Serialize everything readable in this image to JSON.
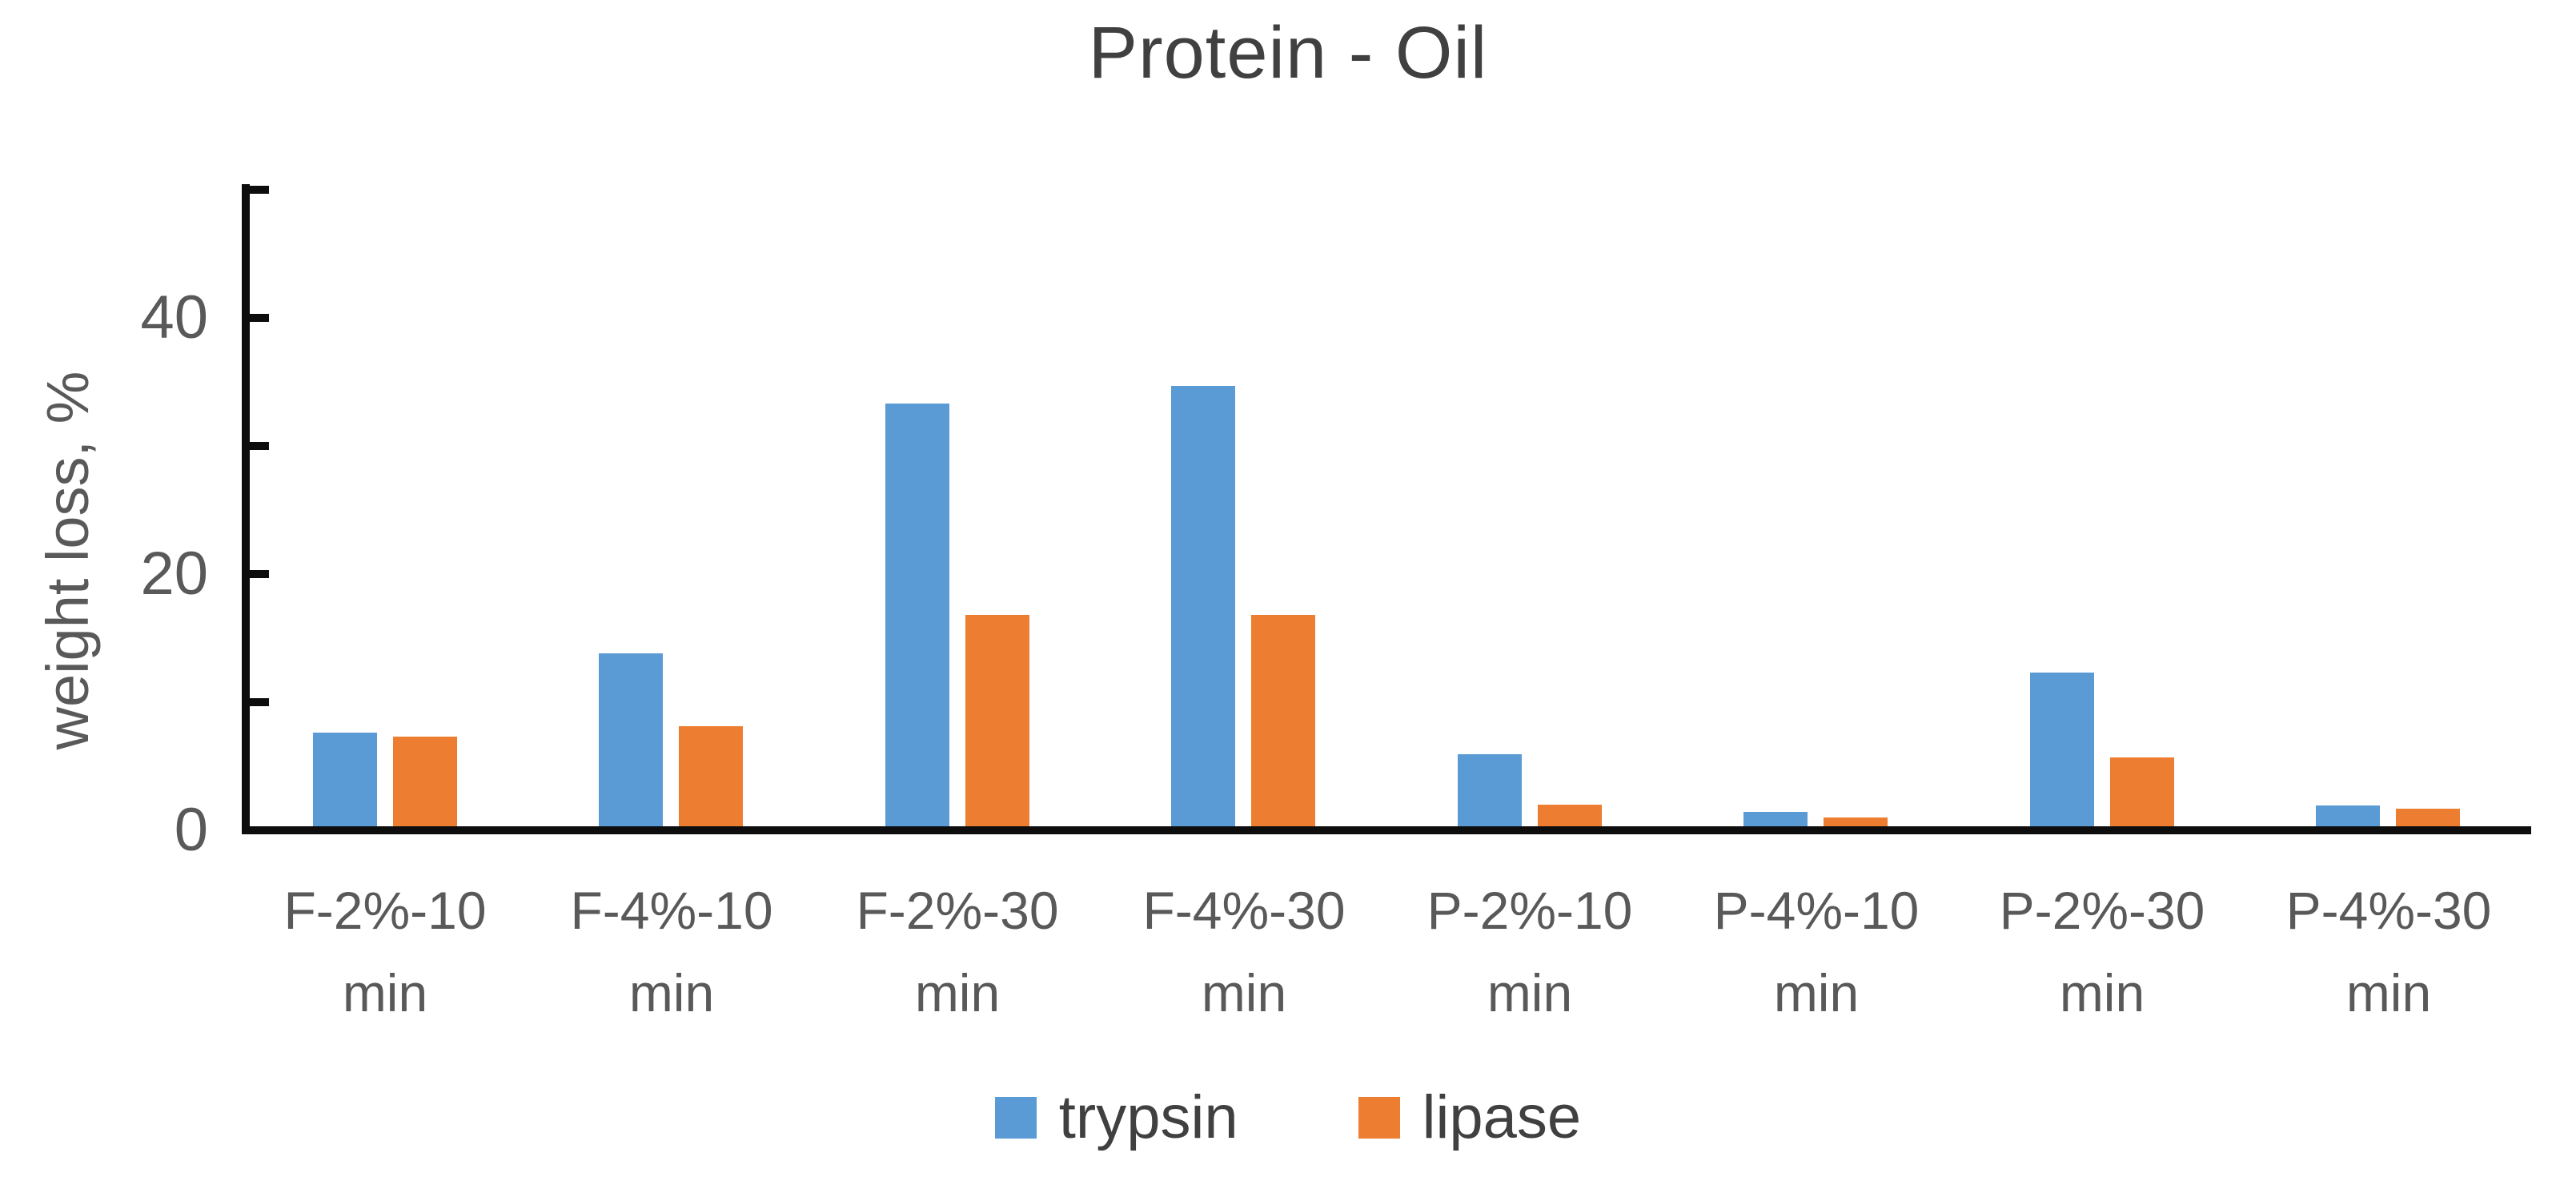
{
  "chart_data": {
    "type": "bar",
    "title": "Protein - Oil",
    "ylabel": "weight loss, %",
    "xlabel": "",
    "categories": [
      "F-2%-10 min",
      "F-4%-10 min",
      "F-2%-30 min",
      "F-4%-30 min",
      "P-2%-10 min",
      "P-4%-10 min",
      "P-2%-30 min",
      "P-4%-30 min"
    ],
    "series": [
      {
        "name": "trypsin",
        "color": "#5B9BD5",
        "values": [
          7.3,
          13.5,
          33.0,
          34.4,
          5.6,
          1.1,
          12.0,
          1.6
        ]
      },
      {
        "name": "lipase",
        "color": "#ED7D31",
        "values": [
          7.0,
          7.8,
          16.5,
          16.5,
          1.7,
          0.7,
          5.4,
          1.4
        ]
      }
    ],
    "ylim": [
      0,
      50
    ],
    "yticks": [
      0,
      10,
      20,
      30,
      40,
      50
    ],
    "ytick_labels": [
      0,
      20,
      40
    ],
    "grid": "off",
    "legend_position": "bottom"
  },
  "colors": {
    "axis": "#0d0d0d",
    "axis_text": "#595959",
    "title_text": "#404040"
  }
}
